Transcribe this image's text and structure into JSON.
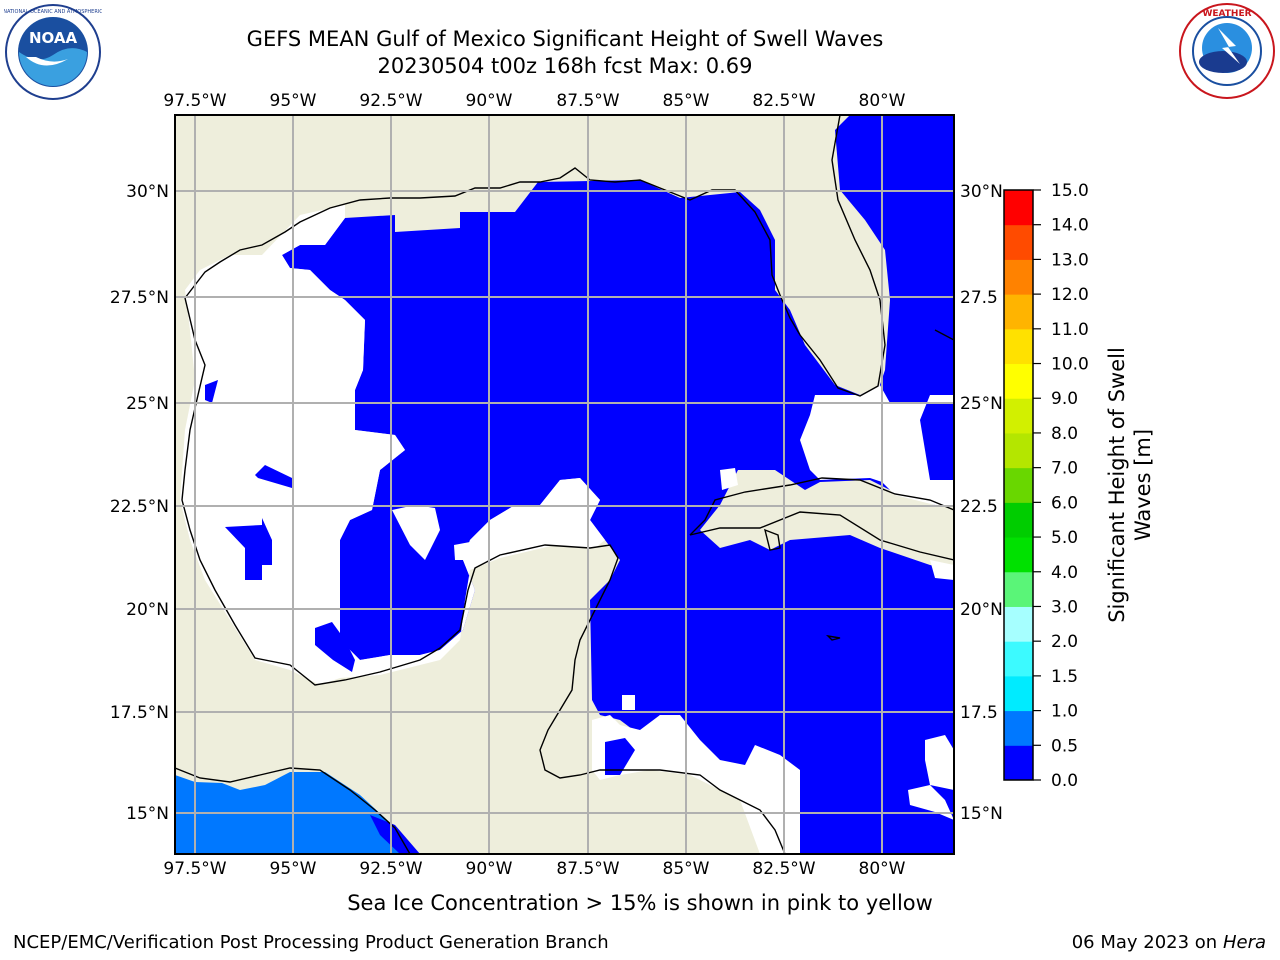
{
  "title_line1": "GEFS MEAN Gulf of Mexico Significant Height of Swell Waves",
  "title_line2": "20230504 t00z 168h fcst   Max: 0.69",
  "caption": "Sea Ice Concentration > 15% is shown in pink to yellow",
  "footer_left": "NCEP/EMC/Verification Post Processing Product Generation Branch",
  "footer_date": "06 May 2023 on",
  "footer_host": "Hera",
  "logos": {
    "left": "NOAA",
    "right": "NATIONAL WEATHER SERVICE"
  },
  "map": {
    "lon_labels": [
      "97.5°W",
      "95°W",
      "92.5°W",
      "90°W",
      "87.5°W",
      "85°W",
      "82.5°W",
      "80°W"
    ],
    "lat_labels": [
      "30°N",
      "27.5°N",
      "25°N",
      "22.5°N",
      "20°N",
      "17.5°N",
      "15°N"
    ],
    "lat_labels_right": [
      "30°N",
      "27.5",
      "25°N",
      "22.5",
      "20°N",
      "17.5",
      "15°N"
    ],
    "colors": {
      "land": "#eeeedc",
      "ocean_low": "#0000ff",
      "ocean_mid": "#0078ff",
      "no_data": "#ffffff",
      "grid": "#b0b0b0"
    }
  },
  "colorbar": {
    "label": "Significant Height of Swell Waves [m]",
    "label_line1": "Significant Height of Swell",
    "label_line2": "Waves [m]",
    "tick_labels": [
      "0.0",
      "0.5",
      "1.0",
      "1.5",
      "2.0",
      "3.0",
      "4.0",
      "5.0",
      "6.0",
      "7.0",
      "8.0",
      "9.0",
      "10.0",
      "11.0",
      "12.0",
      "13.0",
      "14.0",
      "15.0"
    ],
    "colors": [
      "#0000ff",
      "#0078ff",
      "#00ebff",
      "#3cfaff",
      "#a6ffff",
      "#5af578",
      "#00e100",
      "#00cd00",
      "#69d700",
      "#b4e600",
      "#d2f000",
      "#ffff00",
      "#ffe100",
      "#ffb400",
      "#ff8200",
      "#ff4b00",
      "#ff0000"
    ]
  }
}
